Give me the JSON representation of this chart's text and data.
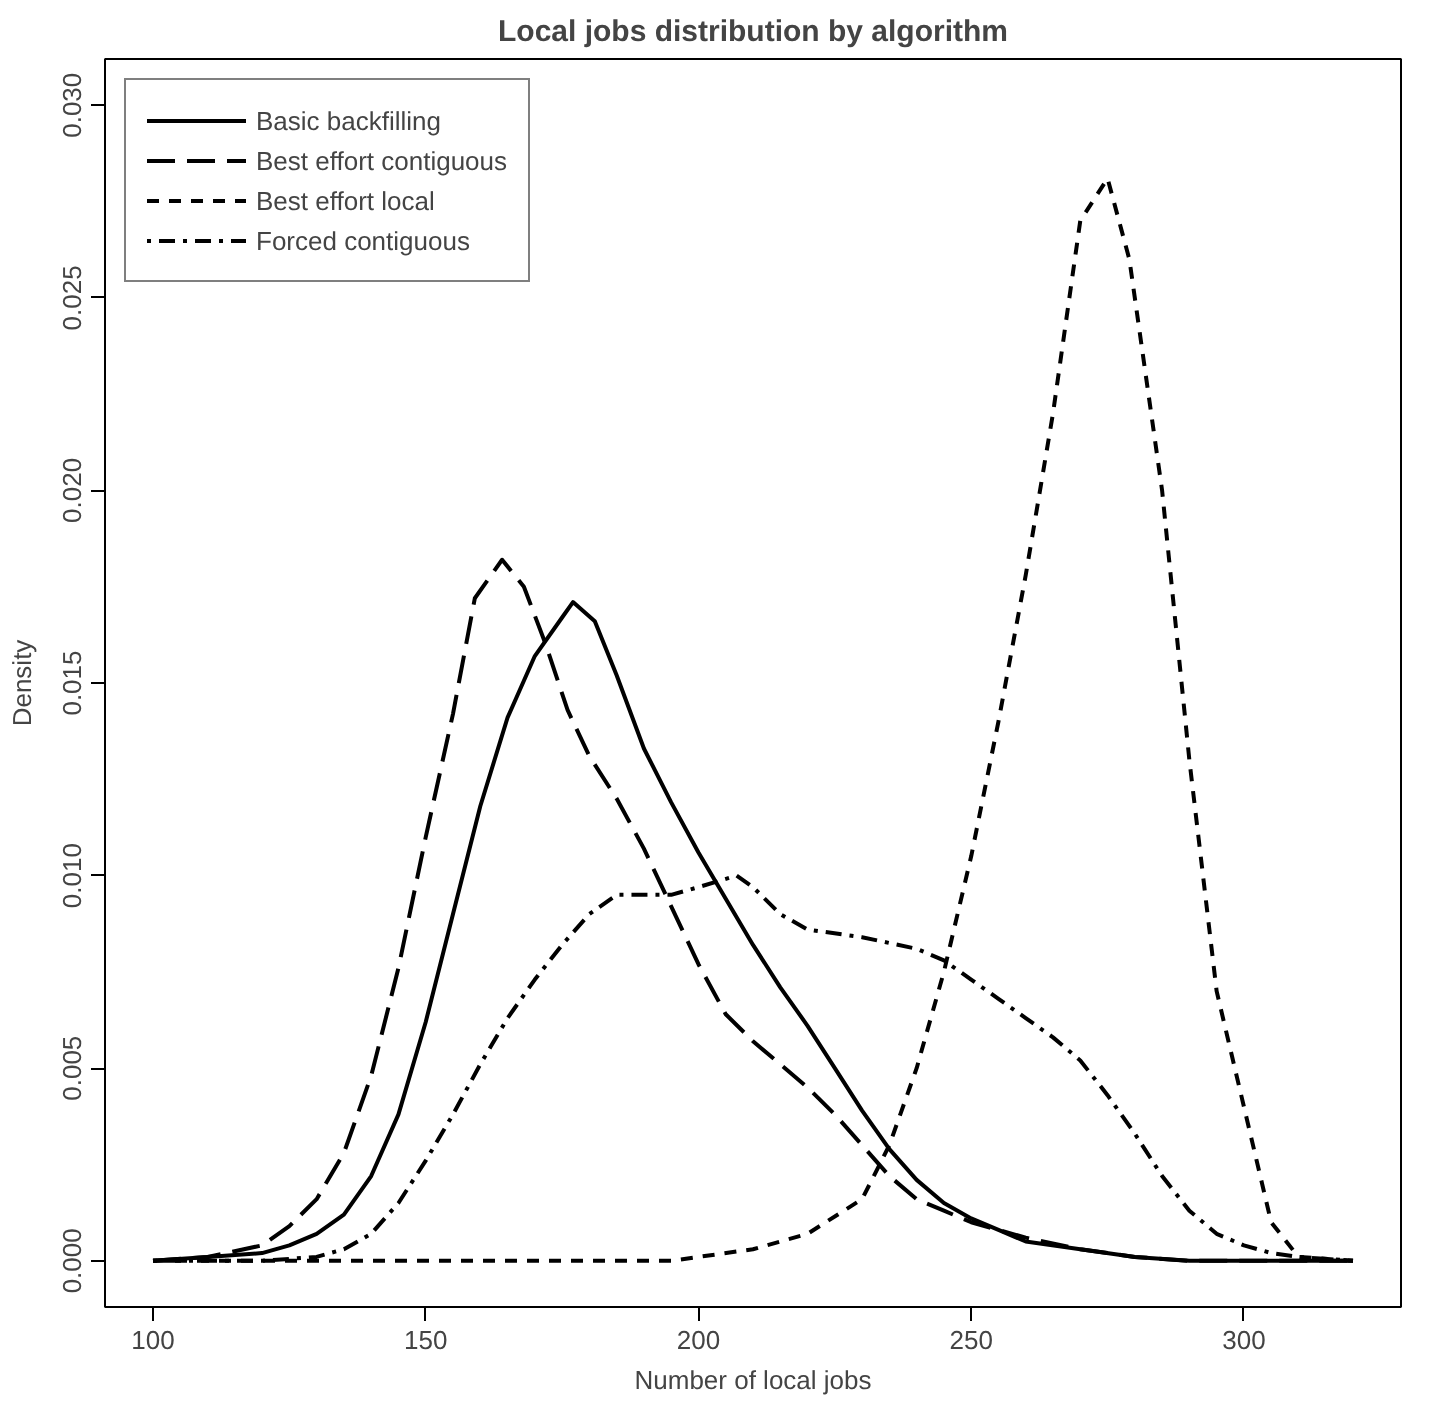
{
  "chart_data": {
    "type": "line",
    "title": "Local jobs distribution by algorithm",
    "xlabel": "Number of local jobs",
    "ylabel": "Density",
    "xlim": [
      91.2,
      328.8
    ],
    "ylim": [
      -0.0012,
      0.0312
    ],
    "xticks": [
      100,
      150,
      200,
      250,
      300
    ],
    "yticks": [
      {
        "value": 0,
        "label": "0.000"
      },
      {
        "value": 0.005,
        "label": "0.005"
      },
      {
        "value": 0.01,
        "label": "0.010"
      },
      {
        "value": 0.015,
        "label": "0.015"
      },
      {
        "value": 0.02,
        "label": "0.020"
      },
      {
        "value": 0.025,
        "label": "0.025"
      },
      {
        "value": 0.03,
        "label": "0.030"
      }
    ],
    "legend": "top left",
    "grid": false,
    "series": [
      {
        "name": "Basic backfilling",
        "color": "#000000",
        "line_style": "solid",
        "x": [
          100,
          110,
          120,
          125,
          130,
          135,
          140,
          145,
          150,
          155,
          160,
          165,
          170,
          175,
          177,
          181,
          185,
          190,
          195,
          200,
          205,
          210,
          215,
          220,
          225,
          230,
          235,
          240,
          245,
          250,
          255,
          260,
          270,
          280,
          290,
          320
        ],
        "values": [
          0,
          0.0001,
          0.0002,
          0.0004,
          0.0007,
          0.0012,
          0.0022,
          0.0038,
          0.0062,
          0.009,
          0.0118,
          0.0141,
          0.0157,
          0.0167,
          0.0171,
          0.0166,
          0.0152,
          0.0133,
          0.0119,
          0.0106,
          0.0094,
          0.0082,
          0.0071,
          0.0061,
          0.005,
          0.0039,
          0.0029,
          0.0021,
          0.0015,
          0.0011,
          0.0008,
          0.0005,
          0.0003,
          0.0001,
          0,
          0
        ]
      },
      {
        "name": "Best effort contiguous",
        "color": "#000000",
        "line_style": "dashed",
        "x": [
          100,
          110,
          120,
          125,
          130,
          135,
          140,
          145,
          150,
          155,
          159,
          164,
          168,
          172,
          176,
          180,
          185,
          190,
          195,
          200,
          205,
          210,
          215,
          220,
          225,
          230,
          235,
          240,
          245,
          250,
          260,
          270,
          280,
          290,
          320
        ],
        "values": [
          0,
          0.0001,
          0.0004,
          0.0009,
          0.0016,
          0.0028,
          0.0048,
          0.0076,
          0.011,
          0.0142,
          0.0172,
          0.0182,
          0.0175,
          0.016,
          0.0143,
          0.0131,
          0.012,
          0.0107,
          0.0092,
          0.0077,
          0.0064,
          0.0057,
          0.0051,
          0.0045,
          0.0038,
          0.003,
          0.0022,
          0.0016,
          0.0013,
          0.001,
          0.0006,
          0.0003,
          0.0001,
          0,
          0
        ]
      },
      {
        "name": "Best effort local",
        "color": "#000000",
        "line_style": "dotted",
        "x": [
          100,
          150,
          195,
          200,
          210,
          220,
          230,
          235,
          240,
          245,
          250,
          255,
          260,
          265,
          270,
          275,
          279,
          285,
          290,
          295,
          300,
          305,
          310,
          320
        ],
        "values": [
          0,
          0,
          0,
          0.0001,
          0.0003,
          0.0007,
          0.0016,
          0.003,
          0.005,
          0.0075,
          0.0105,
          0.014,
          0.0178,
          0.022,
          0.027,
          0.0281,
          0.026,
          0.02,
          0.013,
          0.007,
          0.004,
          0.001,
          0.0001,
          0
        ]
      },
      {
        "name": "Forced contiguous",
        "color": "#000000",
        "line_style": "dashdot",
        "x": [
          100,
          120,
          130,
          135,
          140,
          145,
          150,
          155,
          160,
          165,
          170,
          175,
          180,
          185,
          190,
          195,
          200,
          207,
          210,
          215,
          220,
          230,
          240,
          245,
          250,
          255,
          260,
          265,
          270,
          275,
          280,
          285,
          290,
          295,
          300,
          305,
          310,
          320
        ],
        "values": [
          0,
          0,
          0.0001,
          0.0003,
          0.0007,
          0.0015,
          0.0026,
          0.0038,
          0.0051,
          0.0063,
          0.0073,
          0.0082,
          0.009,
          0.0095,
          0.0095,
          0.0095,
          0.0097,
          0.01,
          0.0097,
          0.009,
          0.0086,
          0.0084,
          0.0081,
          0.0078,
          0.0073,
          0.0068,
          0.0063,
          0.0058,
          0.0052,
          0.0043,
          0.0033,
          0.0022,
          0.0013,
          0.0007,
          0.0004,
          0.0002,
          0.0001,
          0
        ]
      }
    ]
  }
}
